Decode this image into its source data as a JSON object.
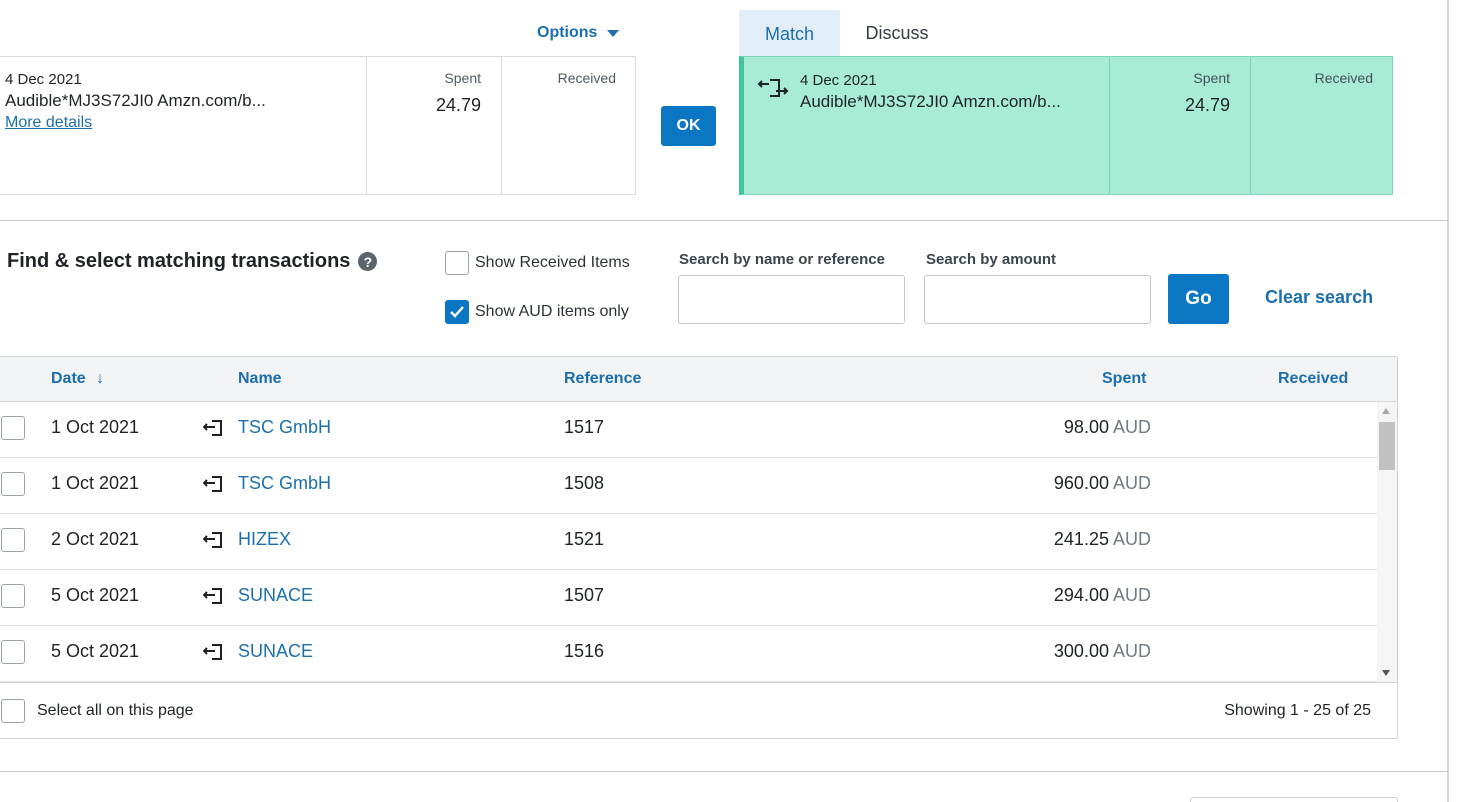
{
  "options": {
    "label": "Options"
  },
  "statement": {
    "date": "4 Dec 2021",
    "description": "Audible*MJ3S72JI0 Amzn.com/b...",
    "more_details": "More details",
    "spent_label": "Spent",
    "spent_value": "24.79",
    "received_label": "Received",
    "received_value": ""
  },
  "ok_label": "OK",
  "tabs": [
    {
      "label": "Match",
      "active": true
    },
    {
      "label": "Discuss",
      "active": false
    }
  ],
  "match": {
    "icon": "transfer-icon",
    "date": "4 Dec 2021",
    "description": "Audible*MJ3S72JI0 Amzn.com/b...",
    "spent_label": "Spent",
    "spent_value": "24.79",
    "received_label": "Received",
    "received_value": "",
    "color": "#a9ecd6"
  },
  "find": {
    "title": "Find & select matching transactions",
    "help_icon": "?",
    "show_received": {
      "label": "Show Received Items",
      "checked": false
    },
    "show_aud": {
      "label": "Show AUD items only",
      "checked": true
    },
    "search_name_label": "Search by name or reference",
    "search_name_value": "",
    "search_amount_label": "Search by amount",
    "search_amount_value": "",
    "go_label": "Go",
    "clear_label": "Clear search"
  },
  "table": {
    "headers": {
      "date": "Date",
      "sort_icon": "↓",
      "name": "Name",
      "reference": "Reference",
      "spent": "Spent",
      "received": "Received"
    },
    "rows": [
      {
        "date": "1 Oct 2021",
        "name": "TSC GmbH",
        "reference": "1517",
        "spent": "98.00",
        "currency": "AUD"
      },
      {
        "date": "1 Oct 2021",
        "name": "TSC GmbH",
        "reference": "1508",
        "spent": "960.00",
        "currency": "AUD"
      },
      {
        "date": "2 Oct 2021",
        "name": "HIZEX",
        "reference": "1521",
        "spent": "241.25",
        "currency": "AUD"
      },
      {
        "date": "5 Oct 2021",
        "name": "SUNACE",
        "reference": "1507",
        "spent": "294.00",
        "currency": "AUD"
      },
      {
        "date": "5 Oct 2021",
        "name": "SUNACE",
        "reference": "1516",
        "spent": "300.00",
        "currency": "AUD"
      }
    ],
    "select_all": "Select all on this page",
    "showing": "Showing 1 - 25 of 25"
  },
  "colors": {
    "accent": "#1c6fac",
    "button": "#0b77c4",
    "match_bg": "#a9ecd6"
  }
}
